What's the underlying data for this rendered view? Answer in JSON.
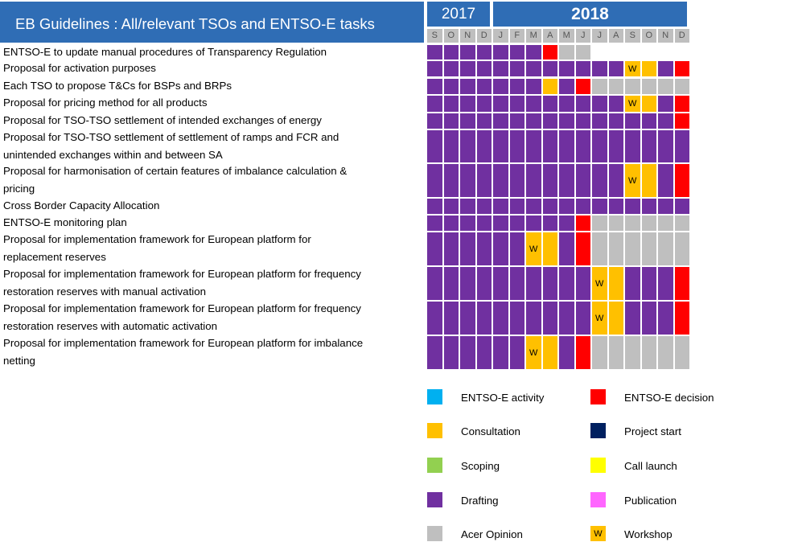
{
  "title": "EB Guidelines : All/relevant TSOs and ENTSO-E tasks",
  "years": {
    "y2017": "2017",
    "y2018": "2018"
  },
  "months": [
    "S",
    "O",
    "N",
    "D",
    "J",
    "F",
    "M",
    "A",
    "M",
    "J",
    "J",
    "A",
    "S",
    "O",
    "N",
    "D"
  ],
  "colors": {
    "D": "#7030A0",
    "C": "#FFC000",
    "E": "#FF0000",
    "A": "#BFBFBF",
    "ENTSO-E activity": "#00B0F0",
    "Scoping": "#92D050",
    "Project start": "#002060",
    "Call launch": "#FFFF00",
    "Publication": "#FF66FF"
  },
  "workshop_mark": "W",
  "tasks": [
    {
      "label": "ENTSO-E to update manual procedures of Transparency Regulation",
      "cells": [
        "D",
        "D",
        "D",
        "D",
        "D",
        "D",
        "D",
        "E",
        "A",
        "A",
        "",
        "",
        "",
        "",
        "",
        ""
      ]
    },
    {
      "label": "Proposal for activation purposes",
      "cells": [
        "D",
        "D",
        "D",
        "D",
        "D",
        "D",
        "D",
        "D",
        "D",
        "D",
        "D",
        "D",
        "W",
        "C",
        "D",
        "E"
      ]
    },
    {
      "label": "Each TSO to propose T&Cs for BSPs and BRPs",
      "cells": [
        "D",
        "D",
        "D",
        "D",
        "D",
        "D",
        "D",
        "C",
        "D",
        "E",
        "A",
        "A",
        "A",
        "A",
        "A",
        "A"
      ]
    },
    {
      "label": "Proposal for pricing method for all products",
      "cells": [
        "D",
        "D",
        "D",
        "D",
        "D",
        "D",
        "D",
        "D",
        "D",
        "D",
        "D",
        "D",
        "W",
        "C",
        "D",
        "E"
      ]
    },
    {
      "label": "Proposal for TSO-TSO settlement of intended exchanges of energy",
      "cells": [
        "D",
        "D",
        "D",
        "D",
        "D",
        "D",
        "D",
        "D",
        "D",
        "D",
        "D",
        "D",
        "D",
        "D",
        "D",
        "E"
      ]
    },
    {
      "label": "Proposal for TSO-TSO settlement of settlement of ramps and FCR and",
      "label2": "unintended exchanges within and between SA",
      "cells": [
        "D",
        "D",
        "D",
        "D",
        "D",
        "D",
        "D",
        "D",
        "D",
        "D",
        "D",
        "D",
        "D",
        "D",
        "D",
        "D"
      ]
    },
    {
      "label": "Proposal for harmonisation of certain features of imbalance calculation &",
      "label2": "pricing",
      "cells": [
        "D",
        "D",
        "D",
        "D",
        "D",
        "D",
        "D",
        "D",
        "D",
        "D",
        "D",
        "D",
        "W",
        "C",
        "D",
        "E"
      ]
    },
    {
      "label": "Cross Border Capacity Allocation",
      "cells": [
        "D",
        "D",
        "D",
        "D",
        "D",
        "D",
        "D",
        "D",
        "D",
        "D",
        "D",
        "D",
        "D",
        "D",
        "D",
        "D"
      ]
    },
    {
      "label": "ENTSO-E monitoring plan",
      "cells": [
        "D",
        "D",
        "D",
        "D",
        "D",
        "D",
        "D",
        "D",
        "D",
        "E",
        "A",
        "A",
        "A",
        "A",
        "A",
        "A"
      ]
    },
    {
      "label": "Proposal for implementation framework for European platform for",
      "label2": "replacement reserves",
      "cells": [
        "D",
        "D",
        "D",
        "D",
        "D",
        "D",
        "W",
        "C",
        "D",
        "E",
        "A",
        "A",
        "A",
        "A",
        "A",
        "A"
      ]
    },
    {
      "label": "Proposal for implementation framework for European platform for frequency",
      "label2": "restoration reserves with manual activation",
      "cells": [
        "D",
        "D",
        "D",
        "D",
        "D",
        "D",
        "D",
        "D",
        "D",
        "D",
        "W",
        "C",
        "D",
        "D",
        "D",
        "E"
      ]
    },
    {
      "label": "Proposal for implementation framework for European platform for frequency",
      "label2": "restoration reserves with automatic activation",
      "cells": [
        "D",
        "D",
        "D",
        "D",
        "D",
        "D",
        "D",
        "D",
        "D",
        "D",
        "W",
        "C",
        "D",
        "D",
        "D",
        "E"
      ]
    },
    {
      "label": "Proposal for implementation framework for European platform for imbalance",
      "label2": "netting",
      "cells": [
        "D",
        "D",
        "D",
        "D",
        "D",
        "D",
        "W",
        "C",
        "D",
        "E",
        "A",
        "A",
        "A",
        "A",
        "A",
        "A"
      ]
    }
  ],
  "legend": [
    {
      "label": "ENTSO-E activity",
      "color": "#00B0F0"
    },
    {
      "label": "ENTSO-E decision",
      "color": "#FF0000"
    },
    {
      "label": "Consultation",
      "color": "#FFC000"
    },
    {
      "label": "Project start",
      "color": "#002060"
    },
    {
      "label": "Scoping",
      "color": "#92D050"
    },
    {
      "label": "Call launch",
      "color": "#FFFF00"
    },
    {
      "label": "Drafting",
      "color": "#7030A0"
    },
    {
      "label": "Publication",
      "color": "#FF66FF"
    },
    {
      "label": "Acer Opinion",
      "color": "#BFBFBF"
    },
    {
      "label": "Workshop",
      "color": "#FFC000",
      "mark": "W"
    }
  ]
}
